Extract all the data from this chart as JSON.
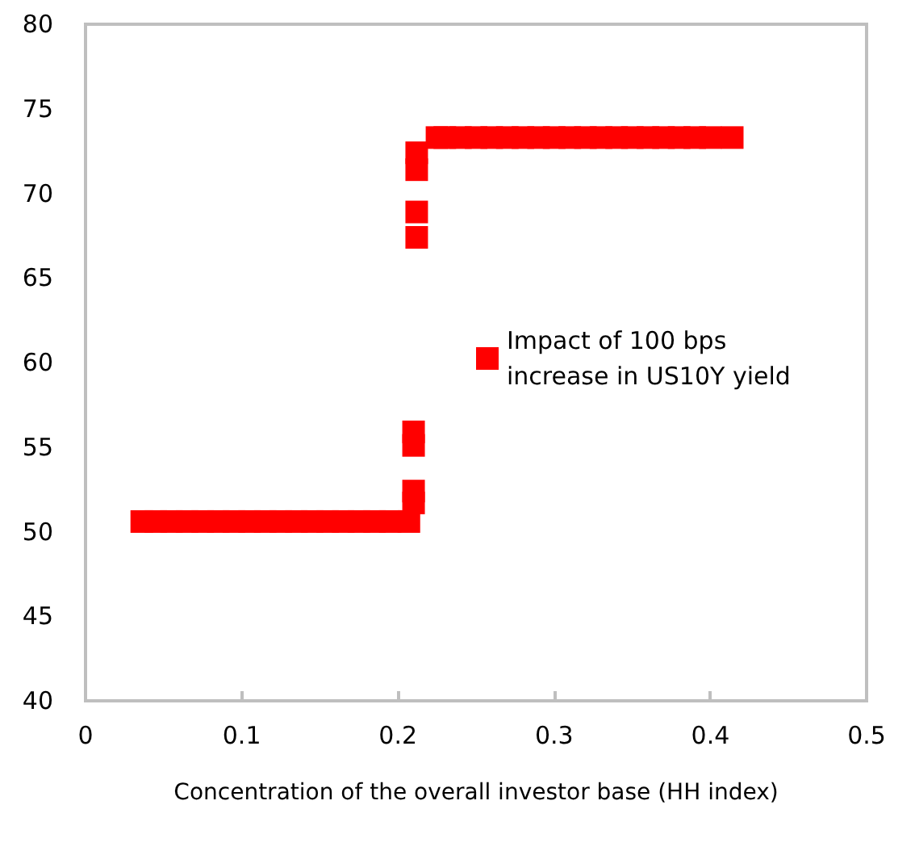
{
  "chart_data": {
    "type": "scatter",
    "xlabel": "Concentration of the overall investor base (HH index)",
    "series": [
      {
        "name": "Impact of 100 bps increase in US10Y yield",
        "color": "#ff0000",
        "x": [
          0.036,
          0.045,
          0.055,
          0.065,
          0.075,
          0.085,
          0.095,
          0.105,
          0.115,
          0.125,
          0.135,
          0.145,
          0.155,
          0.165,
          0.175,
          0.185,
          0.195,
          0.207,
          0.21,
          0.21,
          0.21,
          0.21,
          0.212,
          0.212,
          0.212,
          0.212,
          0.225,
          0.23,
          0.24,
          0.25,
          0.26,
          0.27,
          0.28,
          0.29,
          0.3,
          0.31,
          0.32,
          0.33,
          0.34,
          0.35,
          0.36,
          0.37,
          0.38,
          0.39,
          0.4,
          0.414
        ],
        "values": [
          50.6,
          50.6,
          50.6,
          50.6,
          50.6,
          50.6,
          50.6,
          50.6,
          50.6,
          50.6,
          50.6,
          50.6,
          50.6,
          50.6,
          50.6,
          50.6,
          50.6,
          50.6,
          51.7,
          52.4,
          55.1,
          55.9,
          67.4,
          68.9,
          71.4,
          72.4,
          73.3,
          73.3,
          73.3,
          73.3,
          73.3,
          73.3,
          73.3,
          73.3,
          73.3,
          73.3,
          73.3,
          73.3,
          73.3,
          73.3,
          73.3,
          73.3,
          73.3,
          73.3,
          73.3,
          73.3
        ]
      }
    ],
    "xlim": [
      0,
      0.5
    ],
    "xticks": [
      0,
      0.1,
      0.2,
      0.3,
      0.4,
      0.5
    ],
    "ylim": [
      40,
      80
    ],
    "yticks": [
      40,
      45,
      50,
      55,
      60,
      65,
      70,
      75,
      80
    ],
    "grid": false,
    "legend": "right",
    "marker": "square"
  }
}
